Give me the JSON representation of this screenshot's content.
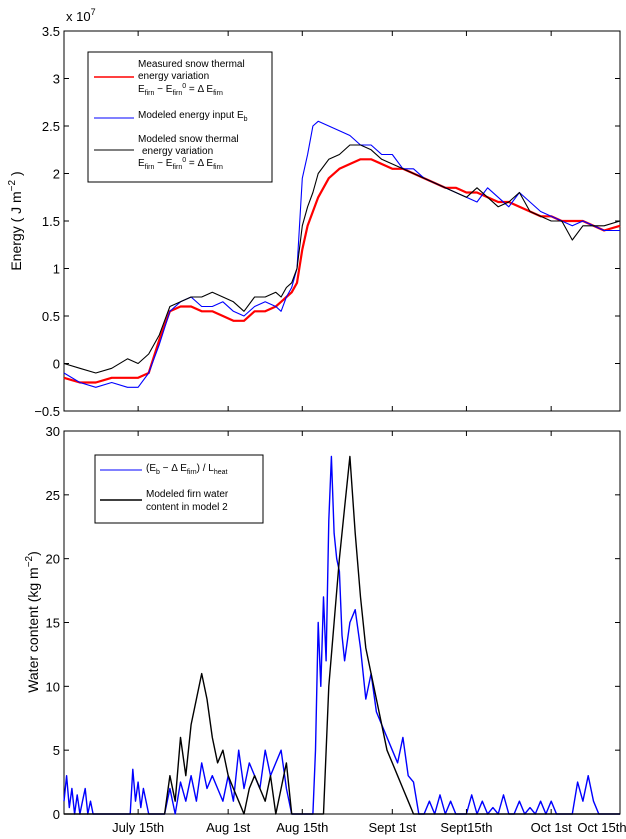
{
  "chart_data": [
    {
      "type": "line",
      "ylabel_text": "Energy ( J m",
      "ylabel_sup": "−2",
      "ylabel_end": " )",
      "exponent_label": "x 10",
      "exponent_power": "7",
      "ylim": [
        -0.5,
        3.5
      ],
      "yticks": [
        -0.5,
        0,
        0.5,
        1,
        1.5,
        2,
        2.5,
        3,
        3.5
      ],
      "ytick_labels": [
        "−0.5",
        "0",
        "0.5",
        "1",
        "1.5",
        "2",
        "2.5",
        "3",
        "3.5"
      ],
      "xlim": [
        0,
        105
      ],
      "xticks": [
        14,
        31,
        45,
        62,
        76,
        92,
        106
      ],
      "xtick_labels": [
        "July 15th",
        "Aug 1st",
        "Aug 15th",
        "Sept 1st",
        "Sept15th",
        "Oct 1st",
        "Oct 15th"
      ],
      "grid": false,
      "legend": "top-left",
      "legend_entries": [
        {
          "color": "#ff0000",
          "line1": "Measured snow thermal",
          "line2": "energy variation",
          "line3": "E_firn − E_firn = Δ E_firn"
        },
        {
          "color": "#0000ff",
          "line1": "Modeled energy input E_b"
        },
        {
          "color": "#000000",
          "line1": "Modeled snow thermal",
          "line2": "energy variation",
          "line3": "E_firn − E_firn = Δ E_firn"
        }
      ],
      "legend_text": {
        "red_1": "Measured snow thermal",
        "red_2": "energy variation",
        "red_3a": "E",
        "red_3b": "firn",
        "red_3c": " − E",
        "red_3d": "firn",
        "red_3e": "0",
        "red_3f": " = Δ E",
        "red_3g": "firn",
        "blue_1a": "Modeled energy input E",
        "blue_1b": "b",
        "black_1": "Modeled snow thermal",
        "black_2": "energy variation",
        "black_3a": "E",
        "black_3b": "firn",
        "black_3c": " − E",
        "black_3d": "firn",
        "black_3e": "0",
        "black_3f": " = Δ E",
        "black_3g": "firn"
      },
      "series": [
        {
          "color": "#ff0000",
          "width": 2.2,
          "x": [
            0,
            3,
            6,
            9,
            12,
            14,
            16,
            18,
            20,
            22,
            24,
            26,
            28,
            30,
            32,
            34,
            36,
            38,
            40,
            41,
            42,
            43,
            44,
            45,
            46,
            47,
            48,
            50,
            52,
            54,
            56,
            58,
            60,
            62,
            64,
            66,
            68,
            70,
            72,
            74,
            76,
            78,
            80,
            82,
            84,
            86,
            88,
            90,
            92,
            94,
            96,
            98,
            100,
            102,
            105
          ],
          "y": [
            -0.15,
            -0.2,
            -0.2,
            -0.15,
            -0.15,
            -0.15,
            -0.1,
            0.25,
            0.55,
            0.6,
            0.6,
            0.55,
            0.55,
            0.5,
            0.45,
            0.45,
            0.55,
            0.55,
            0.6,
            0.65,
            0.7,
            0.75,
            0.85,
            1.2,
            1.45,
            1.6,
            1.75,
            1.95,
            2.05,
            2.1,
            2.15,
            2.15,
            2.1,
            2.05,
            2.05,
            2.0,
            1.95,
            1.9,
            1.85,
            1.85,
            1.8,
            1.8,
            1.75,
            1.7,
            1.7,
            1.65,
            1.6,
            1.55,
            1.55,
            1.5,
            1.5,
            1.5,
            1.45,
            1.4,
            1.45
          ]
        },
        {
          "color": "#0000ff",
          "width": 1.1,
          "x": [
            0,
            3,
            6,
            9,
            12,
            14,
            16,
            18,
            20,
            22,
            24,
            26,
            28,
            30,
            32,
            34,
            36,
            38,
            40,
            41,
            42,
            43,
            44,
            45,
            46,
            47,
            48,
            50,
            52,
            54,
            56,
            58,
            60,
            62,
            64,
            66,
            68,
            70,
            72,
            74,
            76,
            78,
            80,
            82,
            84,
            86,
            88,
            90,
            92,
            94,
            96,
            98,
            100,
            102,
            105
          ],
          "y": [
            -0.1,
            -0.2,
            -0.25,
            -0.2,
            -0.25,
            -0.25,
            -0.1,
            0.2,
            0.55,
            0.65,
            0.7,
            0.6,
            0.6,
            0.65,
            0.55,
            0.5,
            0.6,
            0.65,
            0.6,
            0.55,
            0.7,
            0.8,
            1.0,
            1.95,
            2.2,
            2.5,
            2.55,
            2.5,
            2.45,
            2.4,
            2.3,
            2.3,
            2.2,
            2.2,
            2.05,
            2.05,
            1.95,
            1.9,
            1.85,
            1.8,
            1.75,
            1.7,
            1.85,
            1.75,
            1.65,
            1.8,
            1.7,
            1.6,
            1.55,
            1.5,
            1.45,
            1.5,
            1.45,
            1.4,
            1.4
          ]
        },
        {
          "color": "#000000",
          "width": 1.1,
          "x": [
            0,
            3,
            6,
            9,
            12,
            14,
            16,
            18,
            20,
            22,
            24,
            26,
            28,
            30,
            32,
            34,
            36,
            38,
            40,
            41,
            42,
            43,
            44,
            45,
            46,
            47,
            48,
            50,
            52,
            54,
            56,
            58,
            60,
            62,
            64,
            66,
            68,
            70,
            72,
            74,
            76,
            78,
            80,
            82,
            84,
            86,
            88,
            90,
            92,
            94,
            96,
            98,
            100,
            102,
            105
          ],
          "y": [
            0.0,
            -0.05,
            -0.1,
            -0.05,
            0.05,
            0.0,
            0.1,
            0.3,
            0.6,
            0.65,
            0.7,
            0.7,
            0.75,
            0.7,
            0.65,
            0.55,
            0.7,
            0.7,
            0.75,
            0.7,
            0.8,
            0.85,
            1.0,
            1.45,
            1.65,
            1.8,
            2.0,
            2.15,
            2.2,
            2.3,
            2.3,
            2.25,
            2.15,
            2.1,
            2.05,
            2.0,
            1.95,
            1.9,
            1.85,
            1.8,
            1.75,
            1.85,
            1.75,
            1.65,
            1.7,
            1.8,
            1.6,
            1.55,
            1.5,
            1.5,
            1.3,
            1.45,
            1.45,
            1.45,
            1.5
          ]
        }
      ]
    },
    {
      "type": "line",
      "ylabel_text": "Water content (kg m",
      "ylabel_sup": "−2",
      "ylabel_end": ")",
      "ylim": [
        0,
        30
      ],
      "yticks": [
        0,
        5,
        10,
        15,
        20,
        25,
        30
      ],
      "ytick_labels": [
        "0",
        "5",
        "10",
        "15",
        "20",
        "25",
        "30"
      ],
      "xlim": [
        0,
        105
      ],
      "xticks": [
        14,
        31,
        45,
        62,
        76,
        92,
        106
      ],
      "xtick_labels": [
        "July 15th",
        "Aug 1st",
        "Aug 15th",
        "Sept 1st",
        "Sept15th",
        "Oct 1st",
        "Oct 15th"
      ],
      "grid": false,
      "legend": "top-left",
      "legend_entries": [
        {
          "color": "#0000ff",
          "line1": "(E_b − Δ E_firn) / L_heat"
        },
        {
          "color": "#000000",
          "line1": "Modeled firn water",
          "line2": "content in model 2"
        }
      ],
      "legend_text": {
        "blue_a": "(E",
        "blue_b": "b",
        "blue_c": " − Δ E",
        "blue_d": "firn",
        "blue_e": ") / L",
        "blue_f": "heat",
        "black_1": "Modeled firn water",
        "black_2": "content in model 2"
      },
      "series": [
        {
          "color": "#0000ff",
          "width": 1.4,
          "x": [
            0,
            0.5,
            1,
            1.5,
            2,
            2.5,
            3,
            3.5,
            4,
            4.5,
            5,
            5.5,
            6,
            7,
            8,
            9,
            9.5,
            10,
            11,
            12,
            12.5,
            13,
            13.5,
            14,
            14.5,
            15,
            16,
            17,
            18,
            19,
            20,
            21,
            22,
            23,
            24,
            25,
            26,
            27,
            28,
            29,
            30,
            31,
            32,
            33,
            34,
            35,
            36,
            37,
            38,
            39,
            40,
            41,
            42,
            43,
            43.5,
            44,
            44.5,
            45,
            45.5,
            46,
            46.5,
            47,
            47.5,
            48,
            48.5,
            49,
            49.5,
            50,
            50.5,
            51,
            51.5,
            52,
            52.5,
            53,
            54,
            55,
            56,
            57,
            58,
            59,
            60,
            61,
            62,
            63,
            64,
            65,
            66,
            67,
            68,
            69,
            70,
            71,
            72,
            73,
            74,
            75,
            76,
            77,
            78,
            79,
            80,
            81,
            82,
            83,
            84,
            85,
            86,
            87,
            88,
            89,
            90,
            91,
            92,
            93,
            94,
            95,
            96,
            97,
            98,
            99,
            100,
            101,
            102,
            103,
            104,
            105
          ],
          "y": [
            1,
            3,
            0.5,
            2,
            0,
            1.5,
            0,
            1,
            2,
            0,
            1,
            0,
            0,
            0,
            0,
            0,
            0,
            0,
            0,
            0,
            0,
            3.5,
            1,
            2.5,
            0.5,
            2,
            0,
            0,
            0,
            0,
            2,
            0,
            2.5,
            1,
            3,
            1,
            4,
            2,
            3,
            2,
            1,
            3,
            1,
            5,
            2,
            4,
            3,
            2,
            5,
            3,
            4,
            5,
            2,
            0,
            0,
            0,
            0,
            0,
            0,
            0,
            0,
            0,
            5,
            15,
            10,
            17,
            12,
            23,
            28,
            22,
            20,
            19,
            14,
            12,
            15,
            16,
            13,
            9,
            11,
            8,
            7,
            6,
            5,
            4,
            6,
            3,
            2.5,
            0,
            0,
            1,
            0,
            1.5,
            0,
            1,
            0,
            0,
            0,
            1.5,
            0,
            1,
            0,
            0.5,
            0,
            1.5,
            0,
            0,
            1,
            0,
            0.5,
            0,
            1,
            0,
            1,
            0,
            0,
            0,
            0,
            2.5,
            1,
            3,
            1,
            0,
            0,
            0,
            0,
            0
          ]
        },
        {
          "color": "#000000",
          "width": 1.4,
          "x": [
            0,
            1,
            2,
            3,
            4,
            5,
            6,
            7,
            8,
            9,
            10,
            11,
            12,
            13,
            14,
            15,
            16,
            17,
            18,
            19,
            20,
            21,
            22,
            23,
            24,
            25,
            26,
            27,
            28,
            29,
            30,
            31,
            32,
            33,
            34,
            35,
            36,
            37,
            38,
            39,
            40,
            41,
            42,
            43,
            44,
            45,
            46,
            47,
            48,
            49,
            50,
            51,
            52,
            53,
            54,
            55,
            56,
            57,
            58,
            59,
            60,
            61,
            62,
            63,
            64,
            65,
            66,
            67,
            68,
            69,
            70,
            75,
            80,
            85,
            90,
            95,
            100,
            105
          ],
          "y": [
            0,
            0,
            0,
            0,
            0,
            0,
            0,
            0,
            0,
            0,
            0,
            0,
            0,
            0,
            0,
            0,
            0,
            0,
            0,
            0,
            3,
            1,
            6,
            3,
            7,
            9,
            11,
            9,
            6,
            4,
            5,
            3,
            2,
            1,
            0,
            2,
            3,
            2,
            1,
            3,
            0,
            2,
            4,
            0,
            0,
            0,
            0,
            0,
            0,
            0,
            10,
            15,
            20,
            24,
            28,
            22,
            17,
            13,
            11,
            9,
            7,
            5,
            4,
            3,
            2,
            1,
            0,
            0,
            0,
            0,
            0,
            0,
            0,
            0,
            0,
            0,
            0,
            0
          ]
        }
      ]
    }
  ]
}
